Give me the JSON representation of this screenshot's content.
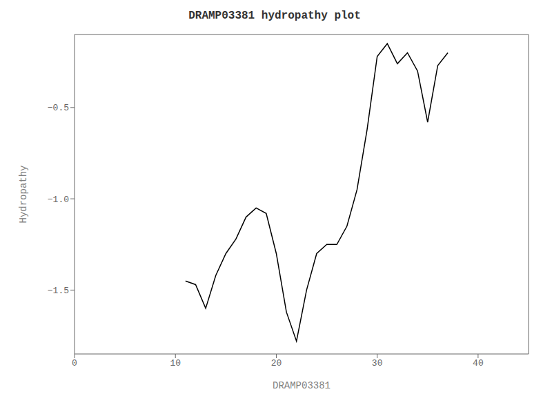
{
  "chart_data": {
    "type": "line",
    "title": "DRAMP03381 hydropathy plot",
    "xlabel": "DRAMP03381",
    "ylabel": "Hydropathy",
    "xlim": [
      0,
      45
    ],
    "ylim": [
      -1.85,
      -0.1
    ],
    "xticks": [
      0,
      10,
      20,
      30,
      40
    ],
    "yticks": [
      {
        "value": -1.5,
        "label": "−1.5"
      },
      {
        "value": -1.0,
        "label": "−1.0"
      },
      {
        "value": -0.5,
        "label": "−0.5"
      }
    ],
    "x": [
      11,
      12,
      13,
      14,
      15,
      16,
      17,
      18,
      19,
      20,
      21,
      22,
      23,
      24,
      25,
      26,
      27,
      28,
      29,
      30,
      31,
      32,
      33,
      34,
      35,
      36,
      37
    ],
    "values": [
      -1.45,
      -1.47,
      -1.6,
      -1.42,
      -1.3,
      -1.22,
      -1.1,
      -1.05,
      -1.08,
      -1.3,
      -1.62,
      -1.78,
      -1.5,
      -1.3,
      -1.25,
      -1.25,
      -1.15,
      -0.95,
      -0.62,
      -0.22,
      -0.15,
      -0.26,
      -0.2,
      -0.3,
      -0.58,
      -0.27,
      -0.2
    ],
    "color": "#000000",
    "grid": false
  }
}
